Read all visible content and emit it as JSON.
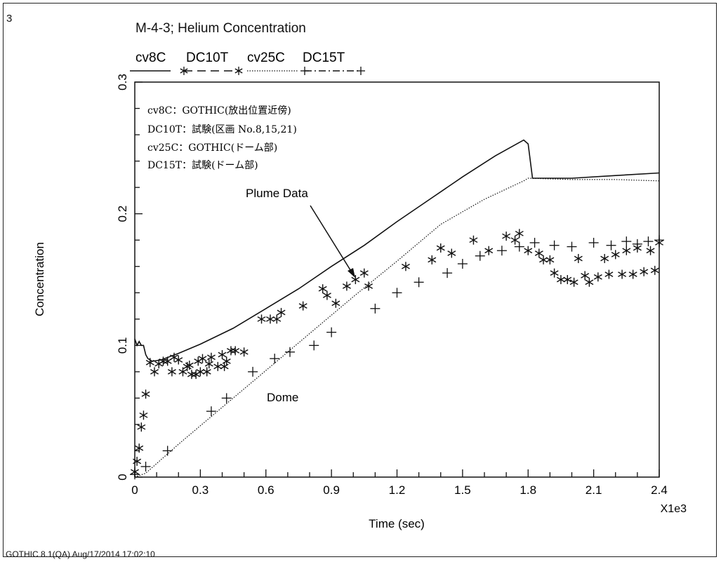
{
  "figure_number": "3",
  "footer": "GOTHIC 8.1(QA) Aug/17/2014 17:02:10",
  "chart_data": {
    "type": "line",
    "title": "M-4-3; Helium Concentration",
    "xlabel": "Time (sec)",
    "ylabel": "Concentration",
    "x_multiplier_label": "X1e3",
    "xlim": [
      0,
      2.4
    ],
    "ylim": [
      0,
      0.3
    ],
    "x_ticks": [
      "0",
      "0.3",
      "0.6",
      "0.9",
      "1.2",
      "1.5",
      "1.8",
      "2.1",
      "2.4"
    ],
    "y_ticks": [
      "0",
      "0.1",
      "0.2",
      "0.3"
    ],
    "legend_top": [
      "cv8C",
      "DC10T",
      "cv25C",
      "DC15T"
    ],
    "legend_box": [
      "cv8C：GOTHIC(放出位置近傍)",
      "DC10T：試験(区画 No.8,15,21)",
      "cv25C：GOTHIC(ドーム部)",
      "DC15T：試験(ドーム部)"
    ],
    "annotations": {
      "plume": "Plume Data",
      "dome": "Dome"
    },
    "series": [
      {
        "name": "cv8C",
        "style": "solid",
        "x": [
          0,
          0.01,
          0.02,
          0.03,
          0.04,
          0.05,
          0.06,
          0.08,
          0.12,
          0.2,
          0.3,
          0.45,
          0.6,
          0.75,
          0.9,
          1.05,
          1.2,
          1.35,
          1.5,
          1.65,
          1.78,
          1.8,
          1.82,
          2.0,
          2.2,
          2.4
        ],
        "y": [
          0.105,
          0.1,
          0.103,
          0.1,
          0.1,
          0.093,
          0.09,
          0.088,
          0.089,
          0.094,
          0.101,
          0.113,
          0.128,
          0.143,
          0.16,
          0.176,
          0.194,
          0.211,
          0.228,
          0.244,
          0.256,
          0.253,
          0.227,
          0.227,
          0.229,
          0.231
        ]
      },
      {
        "name": "DC10T",
        "style": "asterisk",
        "x": [
          0,
          0.01,
          0.02,
          0.03,
          0.04,
          0.05,
          0.07,
          0.09,
          0.11,
          0.13,
          0.15,
          0.17,
          0.18,
          0.2,
          0.22,
          0.24,
          0.25,
          0.26,
          0.28,
          0.29,
          0.3,
          0.31,
          0.33,
          0.34,
          0.35,
          0.38,
          0.4,
          0.41,
          0.42,
          0.44,
          0.46,
          0.5,
          0.58,
          0.62,
          0.65,
          0.67,
          0.77,
          0.86,
          0.88,
          0.92,
          0.97,
          1.01,
          1.05,
          1.07,
          1.24,
          1.36,
          1.4,
          1.45,
          1.55,
          1.62,
          1.7,
          1.74,
          1.76,
          1.8,
          1.85,
          1.87,
          1.9,
          1.92,
          1.95,
          1.98,
          2.01,
          2.03,
          2.06,
          2.08,
          2.12,
          2.15,
          2.17,
          2.2,
          2.23,
          2.25,
          2.28,
          2.3,
          2.33,
          2.36,
          2.38,
          2.4
        ],
        "y": [
          0.004,
          0.012,
          0.022,
          0.038,
          0.047,
          0.063,
          0.087,
          0.08,
          0.086,
          0.088,
          0.088,
          0.08,
          0.091,
          0.089,
          0.08,
          0.084,
          0.085,
          0.078,
          0.078,
          0.088,
          0.08,
          0.09,
          0.08,
          0.086,
          0.091,
          0.084,
          0.093,
          0.084,
          0.088,
          0.096,
          0.096,
          0.095,
          0.12,
          0.12,
          0.12,
          0.125,
          0.13,
          0.143,
          0.138,
          0.132,
          0.145,
          0.15,
          0.155,
          0.145,
          0.16,
          0.165,
          0.174,
          0.17,
          0.18,
          0.172,
          0.183,
          0.18,
          0.185,
          0.172,
          0.17,
          0.165,
          0.165,
          0.155,
          0.15,
          0.15,
          0.148,
          0.166,
          0.153,
          0.148,
          0.152,
          0.166,
          0.154,
          0.169,
          0.154,
          0.172,
          0.154,
          0.174,
          0.156,
          0.172,
          0.157,
          0.178
        ]
      },
      {
        "name": "cv25C",
        "style": "dotted",
        "x": [
          0,
          0.05,
          0.2,
          0.4,
          0.6,
          0.8,
          1.0,
          1.2,
          1.4,
          1.6,
          1.78,
          1.8,
          2.0,
          2.2,
          2.4
        ],
        "y": [
          0,
          0.003,
          0.025,
          0.053,
          0.081,
          0.109,
          0.137,
          0.164,
          0.192,
          0.211,
          0.225,
          0.227,
          0.226,
          0.226,
          0.225
        ]
      },
      {
        "name": "DC15T",
        "style": "plus",
        "x": [
          0.0,
          0.05,
          0.15,
          0.35,
          0.42,
          0.54,
          0.64,
          0.71,
          0.82,
          0.9,
          1.1,
          1.2,
          1.3,
          1.43,
          1.5,
          1.58,
          1.68,
          1.76,
          1.83,
          1.92,
          2.0,
          2.1,
          2.18,
          2.25,
          2.3,
          2.35,
          2.4
        ],
        "y": [
          0.002,
          0.008,
          0.02,
          0.05,
          0.06,
          0.08,
          0.09,
          0.095,
          0.1,
          0.11,
          0.128,
          0.14,
          0.148,
          0.155,
          0.162,
          0.168,
          0.172,
          0.175,
          0.178,
          0.176,
          0.175,
          0.178,
          0.176,
          0.179,
          0.177,
          0.179,
          0.18
        ]
      }
    ]
  }
}
